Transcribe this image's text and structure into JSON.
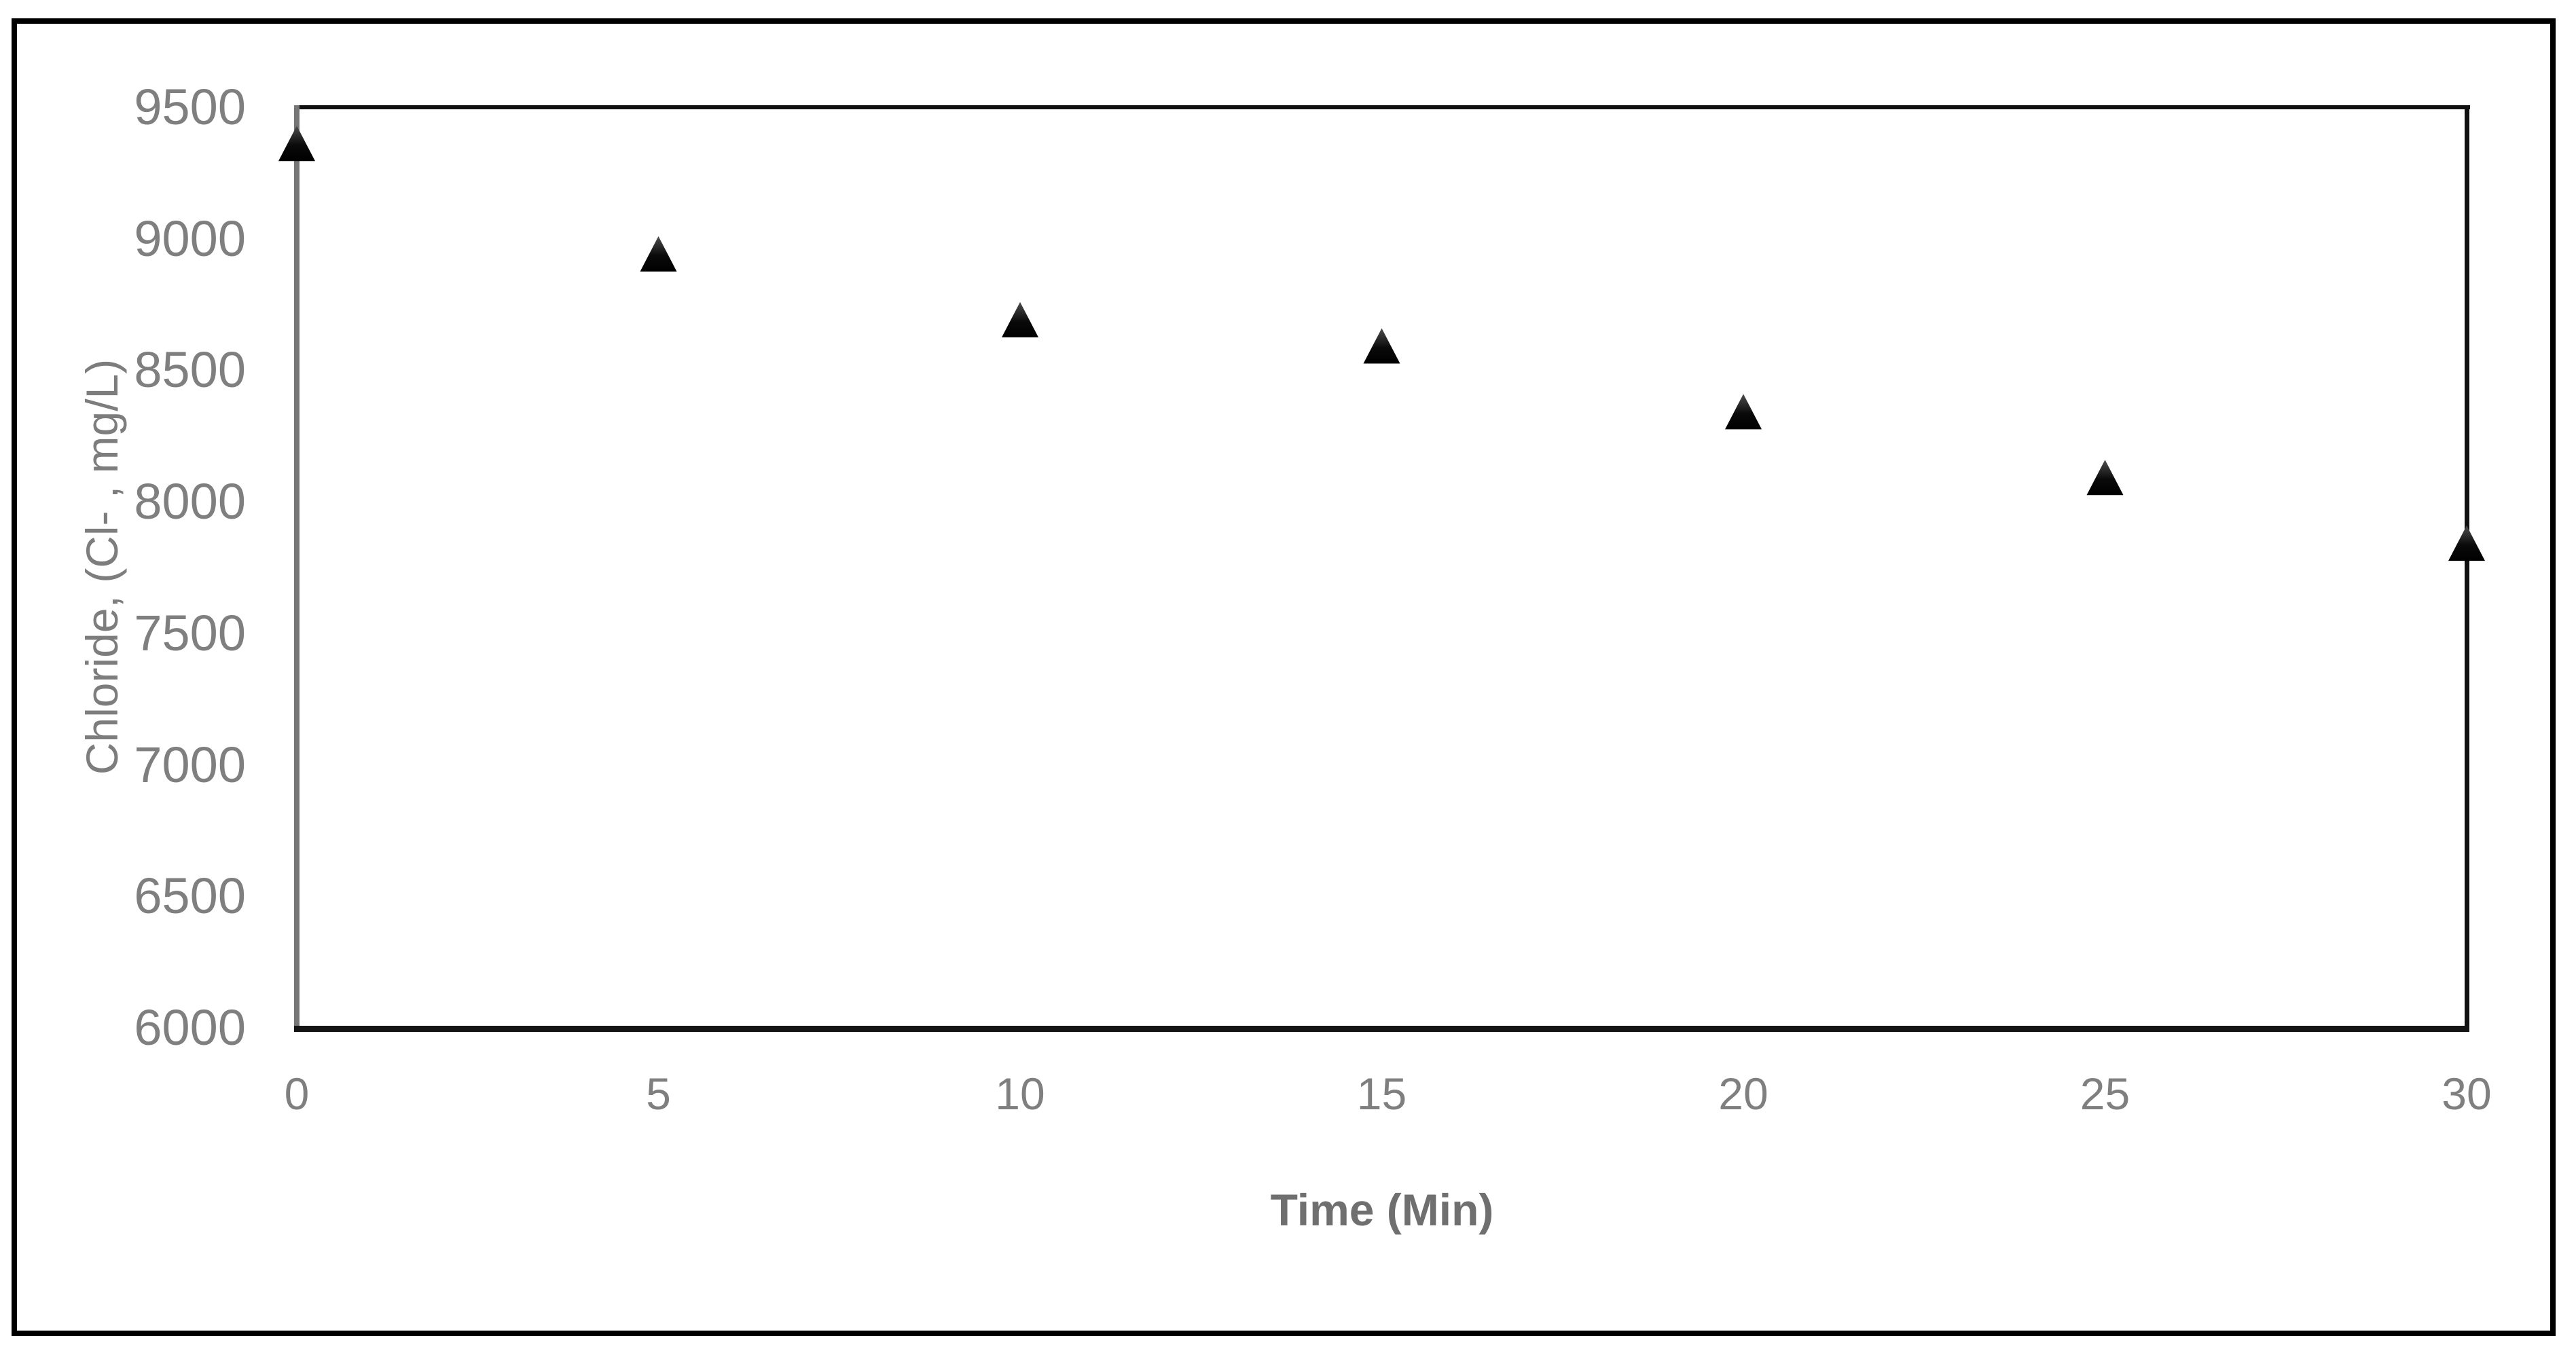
{
  "figure": {
    "background_color": "#ffffff",
    "outer_border_color": "#000000"
  },
  "chart_data": {
    "type": "scatter",
    "title": "",
    "xlabel": "Time (Min)",
    "ylabel": "Chloride, (Cl- , mg/L)",
    "x": [
      0,
      5,
      10,
      15,
      20,
      25,
      30
    ],
    "y": [
      9360,
      8940,
      8690,
      8590,
      8340,
      8090,
      7840
    ],
    "xlim": [
      0,
      30
    ],
    "ylim": [
      6000,
      9500
    ],
    "xticks": [
      "0",
      "5",
      "10",
      "15",
      "20",
      "25",
      "30"
    ],
    "yticks": [
      "9500",
      "9000",
      "8500",
      "8000",
      "7500",
      "7000",
      "6500",
      "6000"
    ],
    "grid": false,
    "legend": false,
    "marker_shape": "triangle-up",
    "marker_color": "#0a0a0a",
    "marker_gradient_top": "#4d4d4d",
    "tick_label_color": "#7f7f7f",
    "axis_line_color": "#767676",
    "plot_border_color": "#101010"
  }
}
